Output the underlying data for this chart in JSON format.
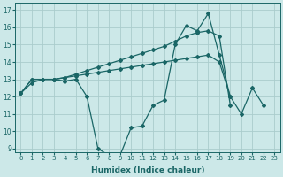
{
  "xlabel": "Humidex (Indice chaleur)",
  "bg_color": "#cce8e8",
  "grid_color": "#aacccc",
  "line_color": "#1a6666",
  "xlim": [
    -0.5,
    23.5
  ],
  "ylim": [
    8.8,
    17.4
  ],
  "series1": [
    12.2,
    12.8,
    13.0,
    13.0,
    12.9,
    13.0,
    12.0,
    9.0,
    8.6,
    8.6,
    10.2,
    10.3,
    11.5,
    11.8,
    15.0,
    16.1,
    15.8,
    16.8,
    14.4,
    12.0,
    11.0,
    12.5,
    11.5
  ],
  "series2": [
    12.2,
    13.0,
    13.0,
    13.0,
    13.1,
    13.3,
    13.5,
    13.7,
    13.9,
    14.1,
    14.3,
    14.5,
    14.7,
    14.9,
    15.2,
    15.5,
    15.7,
    15.8,
    15.5,
    11.5
  ],
  "series3": [
    12.2,
    13.0,
    13.0,
    13.0,
    13.1,
    13.2,
    13.3,
    13.4,
    13.5,
    13.6,
    13.7,
    13.8,
    13.9,
    14.0,
    14.1,
    14.2,
    14.3,
    14.4,
    14.0,
    12.0
  ],
  "xticks": [
    0,
    1,
    2,
    3,
    4,
    5,
    6,
    7,
    8,
    9,
    10,
    11,
    12,
    13,
    14,
    15,
    16,
    17,
    18,
    19,
    20,
    21,
    22,
    23
  ],
  "yticks": [
    9,
    10,
    11,
    12,
    13,
    14,
    15,
    16,
    17
  ]
}
